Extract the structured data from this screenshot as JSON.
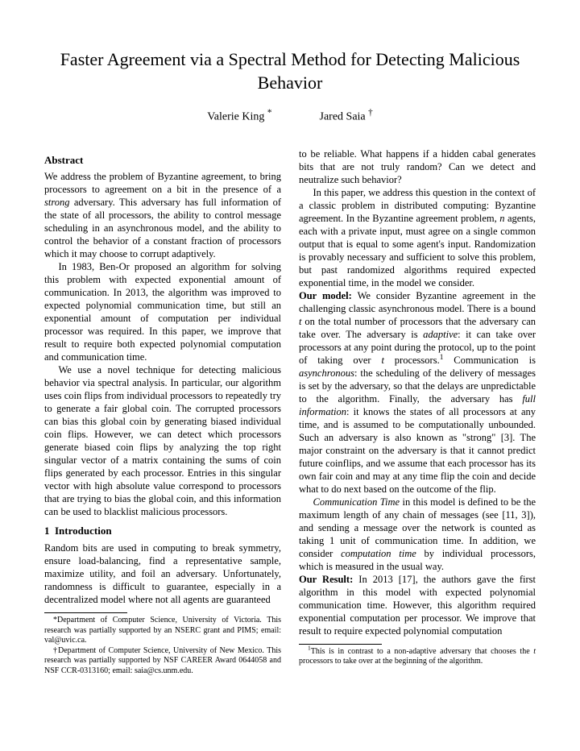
{
  "title": "Faster Agreement via a Spectral Method for Detecting Malicious Behavior",
  "author1": "Valerie King",
  "author1_mark": "*",
  "author2": "Jared Saia",
  "author2_mark": "†",
  "abstract_heading": "Abstract",
  "abs_p1_a": "We address the problem of Byzantine agreement, to bring processors to agreement on a bit in the presence of a ",
  "abs_p1_strong": "strong",
  "abs_p1_b": " adversary. This adversary has full information of the state of all processors, the ability to control message scheduling in an asynchronous model, and the ability to control the behavior of a constant fraction of processors which it may choose to corrupt adaptively.",
  "abs_p2": "In 1983, Ben-Or proposed an algorithm for solving this problem with expected exponential amount of communication. In 2013, the algorithm was improved to expected polynomial communication time, but still an exponential amount of computation per individual processor was required. In this paper, we improve that result to require both expected polynomial computation and communication time.",
  "abs_p3": "We use a novel technique for detecting malicious behavior via spectral analysis. In particular, our algorithm uses coin flips from individual processors to repeatedly try to generate a fair global coin. The corrupted processors can bias this global coin by generating biased individual coin flips. However, we can detect which processors generate biased coin flips by analyzing the top right singular vector of a matrix containing the sums of coin flips generated by each processor. Entries in this singular vector with high absolute value correspond to processors that are trying to bias the global coin, and this information can be used to blacklist malicious processors.",
  "intro_heading_num": "1",
  "intro_heading": "Introduction",
  "intro_p1": "Random bits are used in computing to break symmetry, ensure load-balancing, find a representative sample, maximize utility, and foil an adversary. Unfortunately, randomness is difficult to guarantee, especially in a decentralized model where not all agents are guaranteed",
  "left_fn1": "*Department of Computer Science, University of Victoria. This research was partially supported by an NSERC grant and PIMS; email: val@uvic.ca.",
  "left_fn2": "†Department of Computer Science, University of New Mexico. This research was partially supported by NSF CAREER Award 0644058 and NSF CCR-0313160; email: saia@cs.unm.edu.",
  "r_p1": "to be reliable. What happens if a hidden cabal generates bits that are not truly random? Can we detect and neutralize such behavior?",
  "r_p2_a": "In this paper, we address this question in the context of a classic problem in distributed computing: Byzantine agreement. In the Byzantine agreement problem, ",
  "r_p2_n": "n",
  "r_p2_b": " agents, each with a private input, must agree on a single common output that is equal to some agent's input. Randomization is provably necessary and sufficient to solve this problem, but past randomized algorithms required expected exponential time, in the model we consider.",
  "r_p3_head": "Our model:",
  "r_p3_a": " We consider Byzantine agreement in the challenging classic asynchronous model. There is a bound ",
  "r_p3_t1": "t",
  "r_p3_b": " on the total number of processors that the adversary can take over. The adversary is ",
  "r_p3_adaptive": "adaptive",
  "r_p3_c": ": it can take over processors at any point during the protocol, up to the point of taking over ",
  "r_p3_t2": "t",
  "r_p3_d": " processors.",
  "r_p3_sup": "1",
  "r_p3_e": " Communication is ",
  "r_p3_async": "asynchronous",
  "r_p3_f": ": the scheduling of the delivery of messages is set by the adversary, so that the delays are unpredictable to the algorithm. Finally, the adversary has ",
  "r_p3_full": "full information",
  "r_p3_g": ": it knows the states of all processors at any time, and is assumed to be computationally unbounded. Such an adversary is also known as \"strong\" [3]. The major constraint on the adversary is that it cannot predict future coinflips, and we assume that each processor has its own fair coin and may at any time flip the coin and decide what to do next based on the outcome of the flip.",
  "r_p4_ct": "Communication Time",
  "r_p4_a": " in this model is defined to be the maximum length of any chain of messages (see [11, 3]), and sending a message over the network is counted as taking 1 unit of communication time. In addition, we consider ",
  "r_p4_comp": "computation time",
  "r_p4_b": " by individual processors, which is measured in the usual way.",
  "r_p5_head": "Our Result:",
  "r_p5_a": " In 2013 [17], the authors gave the first algorithm in this model with expected polynomial communication time. However, this algorithm required exponential computation per processor. We improve that result to require expected polynomial computation",
  "right_fn1_a": "This is in contrast to a non-adaptive adversary that chooses the ",
  "right_fn1_t": "t",
  "right_fn1_b": " processors to take over at the beginning of the algorithm."
}
